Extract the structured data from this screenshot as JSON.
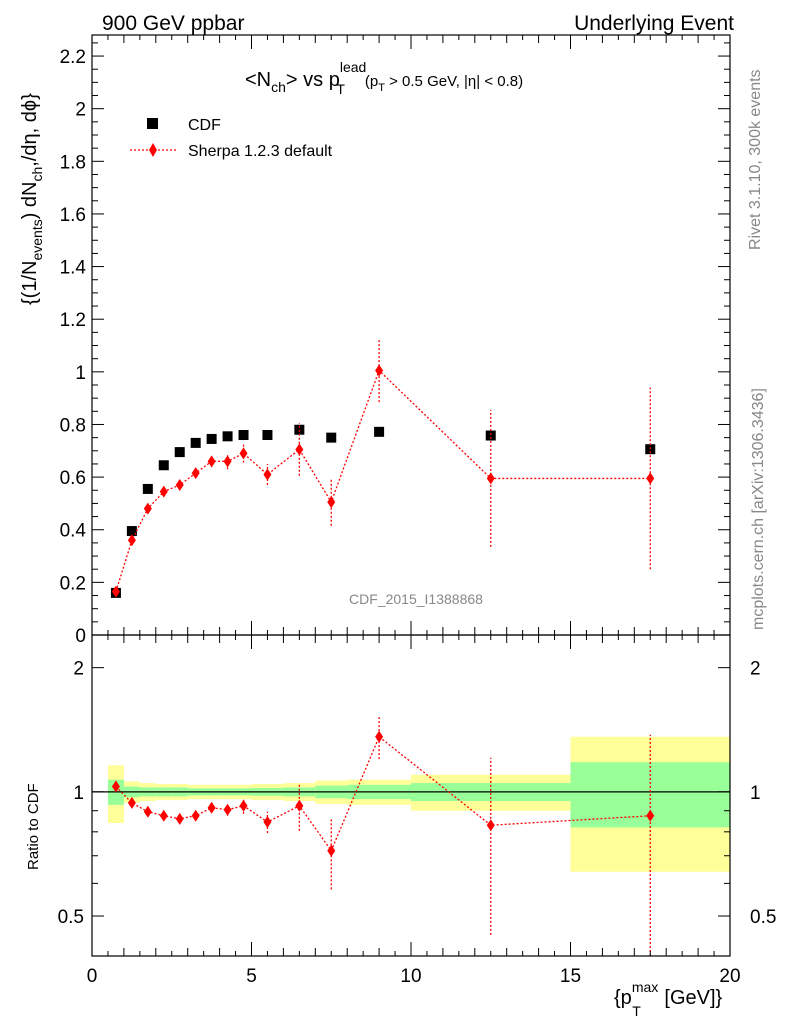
{
  "header": {
    "left": "900 GeV ppbar",
    "right": "Underlying Event"
  },
  "side_labels": {
    "rivet": "Rivet 3.1.10,  300k events",
    "mcplots": "mcplots.cern.ch [arXiv:1306.3436]"
  },
  "watermark": "CDF_2015_I1388868",
  "colors": {
    "cdf": "#000000",
    "sherpa": "#ff0000",
    "band_inner": "#99ff99",
    "band_outer": "#ffff99"
  },
  "chart_data": [
    {
      "type": "scatter",
      "title": "<N_ch> vs p_T^lead (p_T > 0.5 GeV, |η| < 0.8)",
      "title_parts": {
        "main_a": "<N",
        "main_sub": "ch",
        "main_b": "> vs p",
        "main_sup": "lead",
        "main_sub2": "T",
        "cut_a": "(p",
        "cut_sub": "T",
        "cut_b": " > 0.5 GeV, |η| < 0.8)"
      },
      "ylabel": "{(1/N_events) dN_ch,/dη, dϕ}",
      "ylabel_parts": {
        "a": "{(1/N",
        "sub1": "events",
        "b": ") dN",
        "sub2": "ch",
        "c": ",/dη, dϕ}"
      },
      "xlim": [
        0,
        20
      ],
      "ylim": [
        0,
        2.28
      ],
      "y_ticks": [
        {
          "value": 0,
          "label": "0"
        },
        {
          "value": 0.2,
          "label": "0.2"
        },
        {
          "value": 0.4,
          "label": "0.4"
        },
        {
          "value": 0.6,
          "label": "0.6"
        },
        {
          "value": 0.8,
          "label": "0.8"
        },
        {
          "value": 1.0,
          "label": "1"
        },
        {
          "value": 1.2,
          "label": "1.2"
        },
        {
          "value": 1.4,
          "label": "1.4"
        },
        {
          "value": 1.6,
          "label": "1.6"
        },
        {
          "value": 1.8,
          "label": "1.8"
        },
        {
          "value": 2.0,
          "label": "2"
        },
        {
          "value": 2.2,
          "label": "2.2"
        }
      ],
      "legend": [
        {
          "name": "CDF",
          "marker": "square"
        },
        {
          "name": "Sherpa 1.2.3 default",
          "marker": "diamond"
        }
      ],
      "legend_position": "top-left",
      "series": [
        {
          "name": "CDF",
          "points": [
            {
              "x": 0.75,
              "xlo": 0.5,
              "xhi": 1.0,
              "y": 0.16
            },
            {
              "x": 1.25,
              "xlo": 1.0,
              "xhi": 1.5,
              "y": 0.395
            },
            {
              "x": 1.75,
              "xlo": 1.5,
              "xhi": 2.0,
              "y": 0.555
            },
            {
              "x": 2.25,
              "xlo": 2.0,
              "xhi": 2.5,
              "y": 0.645
            },
            {
              "x": 2.75,
              "xlo": 2.5,
              "xhi": 3.0,
              "y": 0.695
            },
            {
              "x": 3.25,
              "xlo": 3.0,
              "xhi": 3.5,
              "y": 0.73
            },
            {
              "x": 3.75,
              "xlo": 3.5,
              "xhi": 4.0,
              "y": 0.745
            },
            {
              "x": 4.25,
              "xlo": 4.0,
              "xhi": 4.5,
              "y": 0.755
            },
            {
              "x": 4.75,
              "xlo": 4.5,
              "xhi": 5.0,
              "y": 0.76
            },
            {
              "x": 5.5,
              "xlo": 5.0,
              "xhi": 6.0,
              "y": 0.76
            },
            {
              "x": 6.5,
              "xlo": 6.0,
              "xhi": 7.0,
              "y": 0.78
            },
            {
              "x": 7.5,
              "xlo": 7.0,
              "xhi": 8.0,
              "y": 0.75
            },
            {
              "x": 9.0,
              "xlo": 8.0,
              "xhi": 10.0,
              "y": 0.772
            },
            {
              "x": 12.5,
              "xlo": 10.0,
              "xhi": 15.0,
              "y": 0.758
            },
            {
              "x": 17.5,
              "xlo": 15.0,
              "xhi": 20.0,
              "y": 0.706
            }
          ]
        },
        {
          "name": "Sherpa 1.2.3 default",
          "points": [
            {
              "x": 0.75,
              "y": 0.165,
              "err": 0.012
            },
            {
              "x": 1.25,
              "y": 0.36,
              "err": 0.012
            },
            {
              "x": 1.75,
              "y": 0.48,
              "err": 0.014
            },
            {
              "x": 2.25,
              "y": 0.545,
              "err": 0.014
            },
            {
              "x": 2.75,
              "y": 0.57,
              "err": 0.016
            },
            {
              "x": 3.25,
              "y": 0.615,
              "err": 0.018
            },
            {
              "x": 3.75,
              "y": 0.66,
              "err": 0.022
            },
            {
              "x": 4.25,
              "y": 0.66,
              "err": 0.03
            },
            {
              "x": 4.75,
              "y": 0.69,
              "err": 0.035
            },
            {
              "x": 5.5,
              "y": 0.61,
              "err": 0.04
            },
            {
              "x": 6.5,
              "y": 0.705,
              "err": 0.1
            },
            {
              "x": 7.5,
              "y": 0.505,
              "err": 0.09
            },
            {
              "x": 9.0,
              "y": 1.005,
              "err": 0.12
            },
            {
              "x": 12.5,
              "y": 0.595,
              "err": 0.26
            },
            {
              "x": 17.5,
              "y": 0.595,
              "err": 0.345
            }
          ]
        }
      ]
    },
    {
      "type": "scatter",
      "ylabel": "Ratio to CDF",
      "xlabel": "{p_T^max [GeV]}",
      "xlabel_parts": {
        "a": "{p",
        "sup": "max",
        "sub": "T",
        "b": " [GeV]}"
      },
      "xlim": [
        0,
        20
      ],
      "ylim": [
        0.4,
        2.4
      ],
      "y_scale": "log",
      "x_ticks": [
        {
          "value": 0,
          "label": "0"
        },
        {
          "value": 5,
          "label": "5"
        },
        {
          "value": 10,
          "label": "10"
        },
        {
          "value": 15,
          "label": "15"
        },
        {
          "value": 20,
          "label": "20"
        }
      ],
      "y_ticks": [
        {
          "value": 0.5,
          "label": "0.5"
        },
        {
          "value": 1.0,
          "label": "1"
        },
        {
          "value": 2.0,
          "label": "2"
        }
      ],
      "reference_line": 1.0,
      "bands": [
        {
          "xlo": 0.5,
          "xhi": 1.0,
          "inner": 0.07,
          "outer": 0.16
        },
        {
          "xlo": 1.0,
          "xhi": 1.5,
          "inner": 0.03,
          "outer": 0.06
        },
        {
          "xlo": 1.5,
          "xhi": 2.0,
          "inner": 0.025,
          "outer": 0.05
        },
        {
          "xlo": 2.0,
          "xhi": 2.5,
          "inner": 0.025,
          "outer": 0.045
        },
        {
          "xlo": 2.5,
          "xhi": 3.0,
          "inner": 0.025,
          "outer": 0.045
        },
        {
          "xlo": 3.0,
          "xhi": 3.5,
          "inner": 0.02,
          "outer": 0.04
        },
        {
          "xlo": 3.5,
          "xhi": 4.0,
          "inner": 0.02,
          "outer": 0.04
        },
        {
          "xlo": 4.0,
          "xhi": 4.5,
          "inner": 0.02,
          "outer": 0.04
        },
        {
          "xlo": 4.5,
          "xhi": 5.0,
          "inner": 0.02,
          "outer": 0.04
        },
        {
          "xlo": 5.0,
          "xhi": 6.0,
          "inner": 0.022,
          "outer": 0.045
        },
        {
          "xlo": 6.0,
          "xhi": 7.0,
          "inner": 0.025,
          "outer": 0.05
        },
        {
          "xlo": 7.0,
          "xhi": 8.0,
          "inner": 0.035,
          "outer": 0.065
        },
        {
          "xlo": 8.0,
          "xhi": 10.0,
          "inner": 0.04,
          "outer": 0.07
        },
        {
          "xlo": 10.0,
          "xhi": 15.0,
          "inner": 0.05,
          "outer": 0.1
        },
        {
          "xlo": 15.0,
          "xhi": 20.0,
          "inner": 0.18,
          "outer": 0.36
        }
      ],
      "series": [
        {
          "name": "Sherpa 1.2.3 default / CDF",
          "points": [
            {
              "x": 0.75,
              "y": 1.03,
              "err": 0.03
            },
            {
              "x": 1.25,
              "y": 0.94,
              "err": 0.02
            },
            {
              "x": 1.75,
              "y": 0.895,
              "err": 0.02
            },
            {
              "x": 2.25,
              "y": 0.875,
              "err": 0.02
            },
            {
              "x": 2.75,
              "y": 0.86,
              "err": 0.02
            },
            {
              "x": 3.25,
              "y": 0.875,
              "err": 0.02
            },
            {
              "x": 3.75,
              "y": 0.915,
              "err": 0.025
            },
            {
              "x": 4.25,
              "y": 0.905,
              "err": 0.03
            },
            {
              "x": 4.75,
              "y": 0.925,
              "err": 0.04
            },
            {
              "x": 5.5,
              "y": 0.845,
              "err": 0.05
            },
            {
              "x": 6.5,
              "y": 0.925,
              "err": 0.12
            },
            {
              "x": 7.5,
              "y": 0.72,
              "err": 0.14
            },
            {
              "x": 9.0,
              "y": 1.36,
              "err": 0.16
            },
            {
              "x": 12.5,
              "y": 0.83,
              "err": 0.38
            },
            {
              "x": 17.5,
              "y": 0.875,
              "err": 0.5
            }
          ]
        }
      ]
    }
  ]
}
